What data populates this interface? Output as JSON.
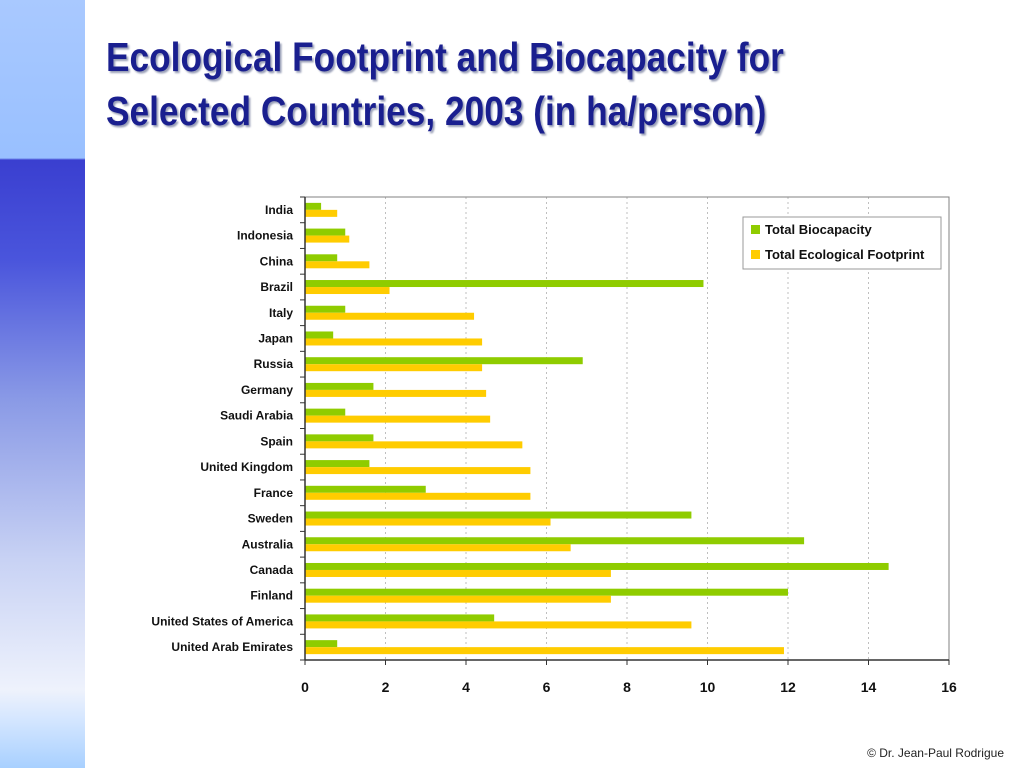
{
  "slide": {
    "title": "Ecological Footprint and Biocapacity for Selected Countries, 2003 (in ha/person)",
    "copyright": "© Dr. Jean-Paul Rodrigue"
  },
  "colors": {
    "biocapacity": "#8fcc00",
    "footprint": "#ffcc00",
    "title": "#1a1f8f",
    "grid": "#bfbfbf"
  },
  "chart_data": {
    "type": "bar",
    "orientation": "horizontal",
    "title": "",
    "xlabel": "",
    "ylabel": "",
    "xlim": [
      0,
      16
    ],
    "x_ticks": [
      0,
      2,
      4,
      6,
      8,
      10,
      12,
      14,
      16
    ],
    "grid": "vertical dotted",
    "legend_position": "top-right",
    "categories": [
      "India",
      "Indonesia",
      "China",
      "Brazil",
      "Italy",
      "Japan",
      "Russia",
      "Germany",
      "Saudi Arabia",
      "Spain",
      "United Kingdom",
      "France",
      "Sweden",
      "Australia",
      "Canada",
      "Finland",
      "United States of America",
      "United Arab Emirates"
    ],
    "series": [
      {
        "name": "Total Biocapacity",
        "color": "#8fcc00",
        "values": [
          0.4,
          1.0,
          0.8,
          9.9,
          1.0,
          0.7,
          6.9,
          1.7,
          1.0,
          1.7,
          1.6,
          3.0,
          9.6,
          12.4,
          14.5,
          12.0,
          4.7,
          0.8
        ]
      },
      {
        "name": "Total Ecological Footprint",
        "color": "#ffcc00",
        "values": [
          0.8,
          1.1,
          1.6,
          2.1,
          4.2,
          4.4,
          4.4,
          4.5,
          4.6,
          5.4,
          5.6,
          5.6,
          6.1,
          6.6,
          7.6,
          7.6,
          9.6,
          11.9
        ]
      }
    ]
  }
}
